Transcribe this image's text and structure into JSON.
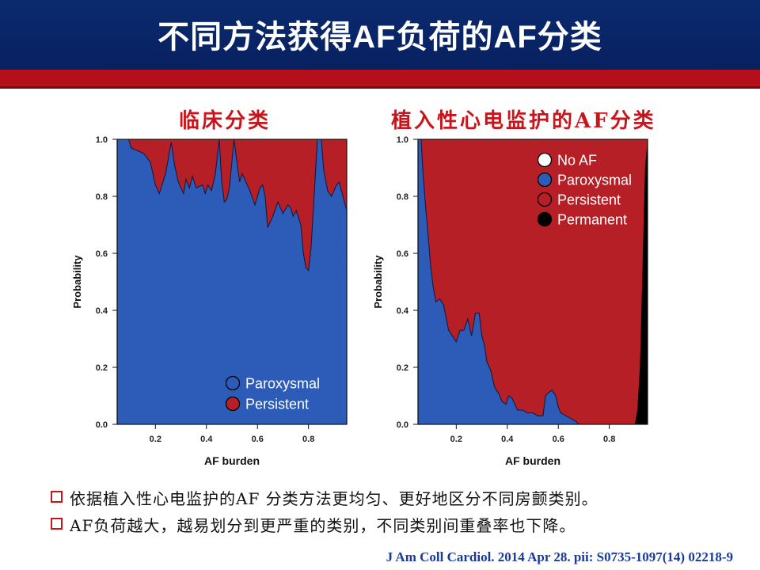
{
  "slide": {
    "title": "不同方法获得AF负荷的AF分类",
    "bullets": [
      "依据植入性心电监护的AF 分类方法更均匀、更好地区分不同房颤类别。",
      "AF负荷越大，越易划分到更严重的类别，不同类别间重叠率也下降。"
    ],
    "citation": "J Am Coll Cardiol. 2014 Apr 28. pii: S0735-1097(14) 02218-9",
    "colors": {
      "header": "#0a2a6e",
      "band": "#b3101c",
      "accent": "#c8141b"
    }
  },
  "chart_data": [
    {
      "type": "area",
      "title": "临床分类",
      "xlabel": "AF burden",
      "ylabel": "Probability",
      "xlim": [
        0.05,
        0.95
      ],
      "ylim": [
        0,
        1
      ],
      "xticks": [
        "0.2",
        "0.4",
        "0.6",
        "0.8"
      ],
      "yticks": [
        "0.0",
        "0.2",
        "0.4",
        "0.6",
        "0.8",
        "1.0"
      ],
      "legend_position": "bottom-right",
      "series": [
        {
          "name": "Paroxysmal",
          "color": "#2c5cb8",
          "x": [
            0.05,
            0.078,
            0.095,
            0.105,
            0.13,
            0.155,
            0.18,
            0.2,
            0.215,
            0.24,
            0.262,
            0.275,
            0.29,
            0.31,
            0.32,
            0.333,
            0.345,
            0.36,
            0.385,
            0.395,
            0.405,
            0.42,
            0.435,
            0.45,
            0.46,
            0.47,
            0.48,
            0.49,
            0.502,
            0.508,
            0.518,
            0.53,
            0.54,
            0.555,
            0.57,
            0.59,
            0.6,
            0.61,
            0.62,
            0.63,
            0.64,
            0.66,
            0.68,
            0.7,
            0.72,
            0.73,
            0.74,
            0.752,
            0.77,
            0.78,
            0.79,
            0.8,
            0.81,
            0.822,
            0.835,
            0.85,
            0.86,
            0.875,
            0.89,
            0.9,
            0.91,
            0.92,
            0.935,
            0.95
          ],
          "values": [
            1,
            1,
            1,
            0.97,
            0.96,
            0.95,
            0.92,
            0.84,
            0.81,
            0.88,
            0.99,
            0.91,
            0.85,
            0.81,
            0.86,
            0.83,
            0.87,
            0.83,
            0.84,
            0.81,
            0.84,
            0.82,
            0.88,
            1,
            0.85,
            0.78,
            0.79,
            0.83,
            0.94,
            1,
            0.93,
            0.85,
            0.88,
            0.85,
            0.82,
            0.77,
            0.8,
            0.83,
            0.84,
            0.8,
            0.69,
            0.73,
            0.78,
            0.74,
            0.77,
            0.76,
            0.73,
            0.75,
            0.7,
            0.6,
            0.55,
            0.54,
            0.62,
            0.8,
            1,
            1,
            0.89,
            0.82,
            0.8,
            0.82,
            0.84,
            0.85,
            0.8,
            0.75
          ]
        },
        {
          "name": "Persistent",
          "color": "#b51f25"
        }
      ]
    },
    {
      "type": "area",
      "title": "植入性心电监护的AF分类",
      "xlabel": "AF burden",
      "ylabel": "Probability",
      "xlim": [
        0.05,
        0.95
      ],
      "ylim": [
        0,
        1
      ],
      "xticks": [
        "0.2",
        "0.4",
        "0.6",
        "0.8"
      ],
      "yticks": [
        "0.0",
        "0.2",
        "0.4",
        "0.6",
        "0.8",
        "1.0"
      ],
      "legend_position": "top-right",
      "series": [
        {
          "name": "No AF",
          "color": "#ffffff"
        },
        {
          "name": "Paroxysmal",
          "color": "#2c5cb8",
          "x": [
            0.05,
            0.062,
            0.07,
            0.08,
            0.09,
            0.1,
            0.11,
            0.12,
            0.135,
            0.15,
            0.17,
            0.185,
            0.2,
            0.215,
            0.23,
            0.245,
            0.26,
            0.275,
            0.29,
            0.3,
            0.31,
            0.32,
            0.335,
            0.35,
            0.365,
            0.38,
            0.395,
            0.405,
            0.42,
            0.44,
            0.46,
            0.48,
            0.5,
            0.52,
            0.54,
            0.55,
            0.56,
            0.575,
            0.59,
            0.6,
            0.61,
            0.63,
            0.65,
            0.67,
            0.68,
            0.7,
            0.72,
            0.95
          ],
          "values": [
            1,
            1,
            0.88,
            0.76,
            0.66,
            0.55,
            0.48,
            0.43,
            0.44,
            0.42,
            0.33,
            0.31,
            0.29,
            0.33,
            0.33,
            0.37,
            0.31,
            0.39,
            0.39,
            0.31,
            0.28,
            0.22,
            0.19,
            0.13,
            0.11,
            0.08,
            0.07,
            0.1,
            0.09,
            0.05,
            0.05,
            0.04,
            0.04,
            0.03,
            0.03,
            0.1,
            0.11,
            0.12,
            0.1,
            0.06,
            0.04,
            0.03,
            0.02,
            0.01,
            0.0,
            0.0,
            0.0,
            0.0
          ]
        },
        {
          "name": "Persistent",
          "color": "#b51f25"
        },
        {
          "name": "Permanent",
          "color": "#000000",
          "x": [
            0.05,
            0.9,
            0.91,
            0.92,
            0.93,
            0.94,
            0.95
          ],
          "values": [
            0,
            0,
            0.05,
            0.2,
            0.55,
            0.9,
            1
          ]
        }
      ]
    }
  ]
}
